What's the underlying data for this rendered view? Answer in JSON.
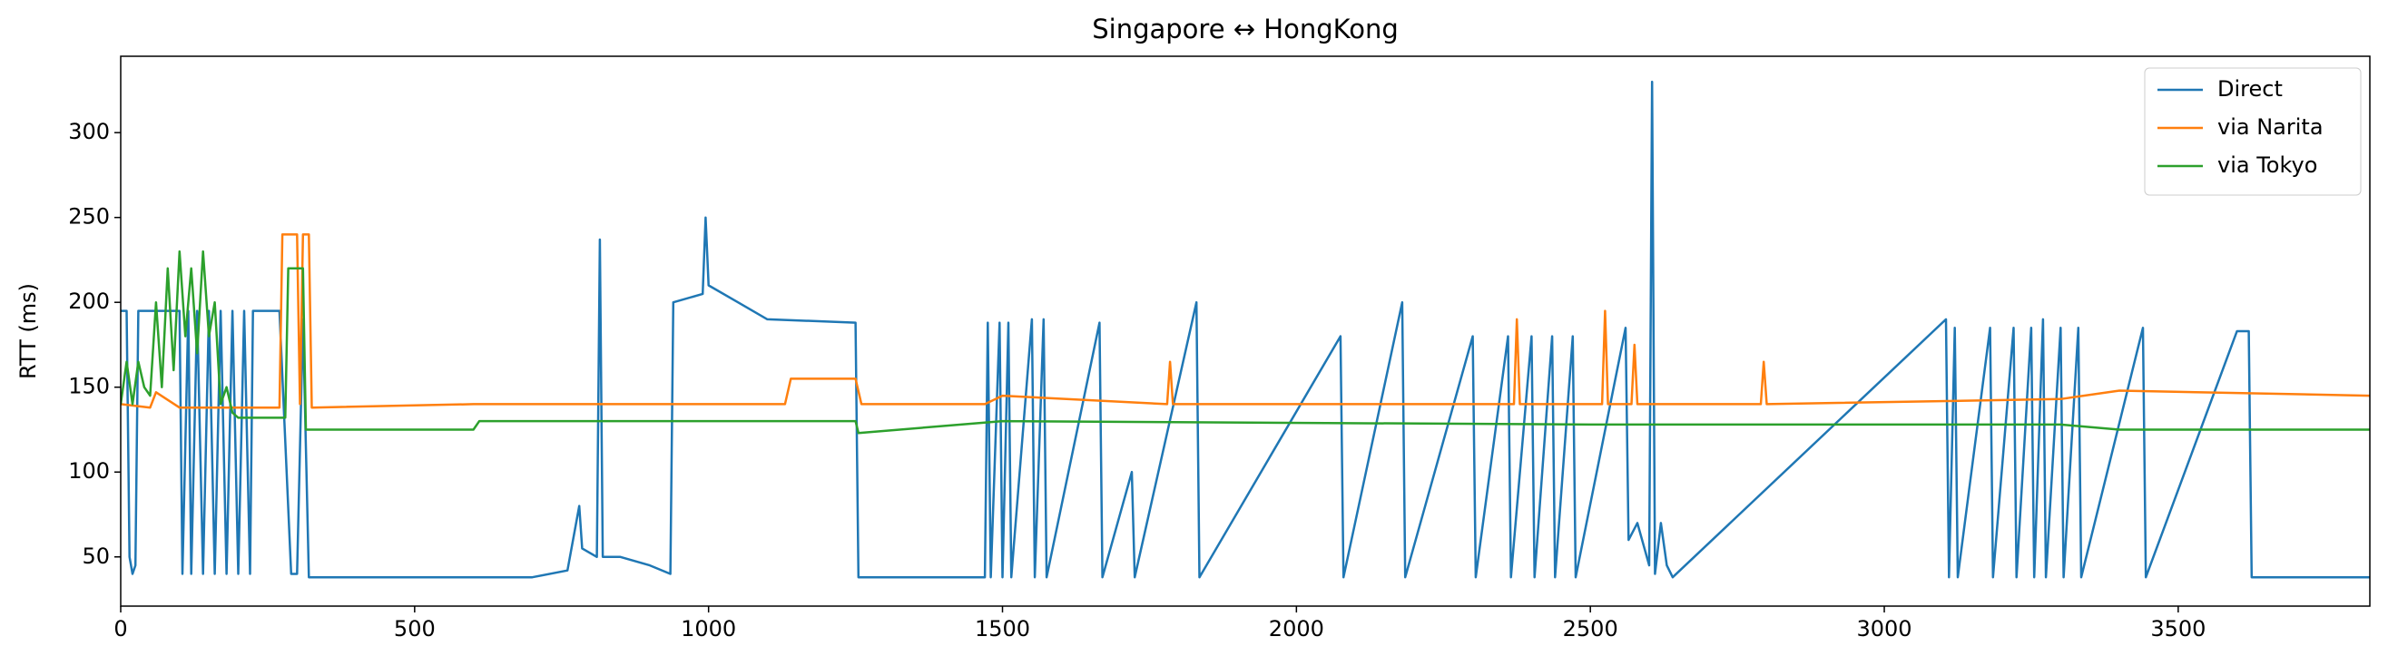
{
  "chart_data": {
    "type": "line",
    "title": "Singapore ↔ HongKong",
    "y_label": "RTT (ms)",
    "xlim": [
      0,
      3826
    ],
    "ylim": [
      21,
      345
    ],
    "xticks": [
      0,
      500,
      1000,
      1500,
      2000,
      2500,
      3000,
      3500
    ],
    "yticks": [
      50,
      100,
      150,
      200,
      250,
      300
    ],
    "legend": "upper right",
    "series": [
      {
        "name": "Direct",
        "color": "#1f77b4",
        "x": [
          0,
          10,
          15,
          20,
          25,
          30,
          100,
          105,
          115,
          120,
          130,
          140,
          150,
          160,
          170,
          180,
          190,
          200,
          210,
          220,
          225,
          270,
          290,
          300,
          310,
          320,
          700,
          760,
          780,
          785,
          810,
          815,
          820,
          850,
          900,
          935,
          940,
          990,
          995,
          1000,
          1050,
          1100,
          1250,
          1255,
          1470,
          1475,
          1480,
          1495,
          1500,
          1510,
          1515,
          1550,
          1555,
          1570,
          1575,
          1665,
          1670,
          1720,
          1725,
          1830,
          1835,
          2075,
          2080,
          2180,
          2185,
          2300,
          2305,
          2360,
          2365,
          2400,
          2405,
          2435,
          2440,
          2470,
          2475,
          2560,
          2565,
          2580,
          2600,
          2605,
          2610,
          2620,
          2630,
          2640,
          3105,
          3110,
          3120,
          3125,
          3180,
          3185,
          3220,
          3225,
          3250,
          3255,
          3270,
          3275,
          3300,
          3305,
          3330,
          3335,
          3440,
          3445,
          3600,
          3620,
          3625,
          3826
        ],
        "values": [
          195,
          195,
          50,
          40,
          45,
          195,
          195,
          40,
          195,
          40,
          195,
          40,
          195,
          40,
          195,
          40,
          195,
          40,
          195,
          40,
          195,
          195,
          40,
          40,
          190,
          38,
          38,
          42,
          80,
          55,
          50,
          237,
          50,
          50,
          45,
          40,
          200,
          205,
          250,
          210,
          200,
          190,
          188,
          38,
          38,
          188,
          38,
          188,
          38,
          188,
          38,
          190,
          38,
          190,
          38,
          188,
          38,
          100,
          38,
          200,
          38,
          180,
          38,
          200,
          38,
          180,
          38,
          180,
          38,
          180,
          38,
          180,
          38,
          180,
          38,
          185,
          60,
          70,
          45,
          330,
          40,
          70,
          45,
          38,
          190,
          38,
          185,
          38,
          185,
          38,
          185,
          38,
          185,
          38,
          190,
          38,
          185,
          38,
          185,
          38,
          185,
          38,
          183,
          183,
          38,
          38
        ]
      },
      {
        "name": "via Narita",
        "color": "#ff7f0e",
        "x": [
          0,
          50,
          60,
          100,
          270,
          275,
          300,
          305,
          310,
          320,
          325,
          600,
          900,
          1130,
          1140,
          1250,
          1260,
          1470,
          1500,
          1780,
          1785,
          1790,
          2370,
          2375,
          2380,
          2520,
          2525,
          2530,
          2570,
          2575,
          2580,
          2790,
          2795,
          2800,
          3300,
          3400,
          3826
        ],
        "values": [
          140,
          138,
          147,
          138,
          138,
          240,
          240,
          140,
          240,
          240,
          138,
          140,
          140,
          140,
          155,
          155,
          140,
          140,
          145,
          140,
          165,
          140,
          140,
          190,
          140,
          140,
          195,
          140,
          140,
          175,
          140,
          140,
          165,
          140,
          143,
          148,
          145
        ]
      },
      {
        "name": "via Tokyo",
        "color": "#2ca02c",
        "x": [
          0,
          10,
          20,
          30,
          40,
          50,
          60,
          70,
          80,
          90,
          100,
          110,
          120,
          130,
          140,
          150,
          160,
          170,
          180,
          190,
          200,
          280,
          285,
          310,
          315,
          600,
          610,
          900,
          1250,
          1255,
          1500,
          2500,
          3300,
          3400,
          3826
        ],
        "values": [
          140,
          165,
          140,
          165,
          150,
          145,
          200,
          150,
          220,
          160,
          230,
          180,
          220,
          170,
          230,
          180,
          200,
          140,
          150,
          135,
          132,
          132,
          220,
          220,
          125,
          125,
          130,
          130,
          130,
          123,
          130,
          128,
          128,
          125,
          125
        ]
      }
    ]
  }
}
